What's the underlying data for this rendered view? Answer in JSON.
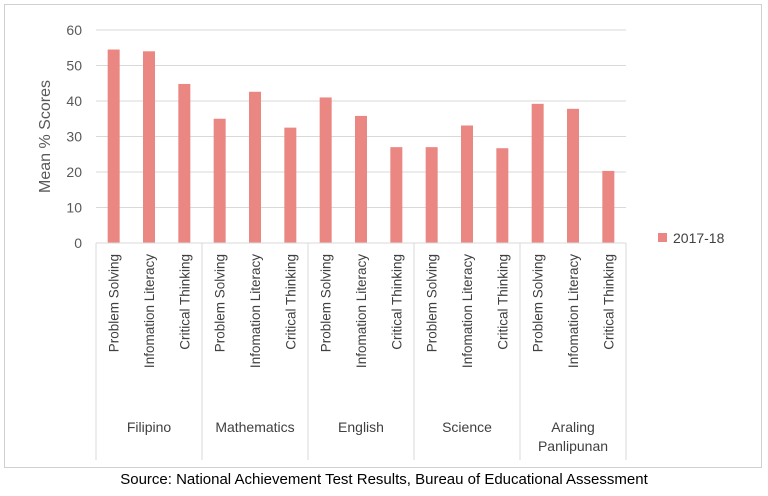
{
  "chart_data": {
    "type": "bar",
    "title": "",
    "ylabel": "Mean % Scores",
    "xlabel": "",
    "ylim": [
      0,
      60
    ],
    "yticks": [
      0,
      10,
      20,
      30,
      40,
      50,
      60
    ],
    "grid": true,
    "legend_position": "right",
    "groups": [
      {
        "name": "Filipino",
        "categories": [
          "Problem Solving",
          "Infomation Literacy",
          "Critical Thinking"
        ]
      },
      {
        "name": "Mathematics",
        "categories": [
          "Problem Solving",
          "Infomation Literacy",
          "Critical Thinking"
        ]
      },
      {
        "name": "English",
        "categories": [
          "Problem Solving",
          "Infomation Literacy",
          "Critical Thinking"
        ]
      },
      {
        "name": "Science",
        "categories": [
          "Problem Solving",
          "Infomation Literacy",
          "Critical Thinking"
        ]
      },
      {
        "name": "Araling Panlipunan",
        "categories": [
          "Problem Solving",
          "Infomation Literacy",
          "Critical Thinking"
        ]
      }
    ],
    "series": [
      {
        "name": "2017-18",
        "color": "#ea8783",
        "values": [
          54.5,
          54,
          44.8,
          35,
          42.6,
          32.5,
          41,
          35.8,
          27,
          27,
          33.1,
          26.7,
          39.2,
          37.8,
          20.3
        ]
      }
    ]
  },
  "source": "Source: National Achievement Test Results, Bureau of Educational Assessment"
}
